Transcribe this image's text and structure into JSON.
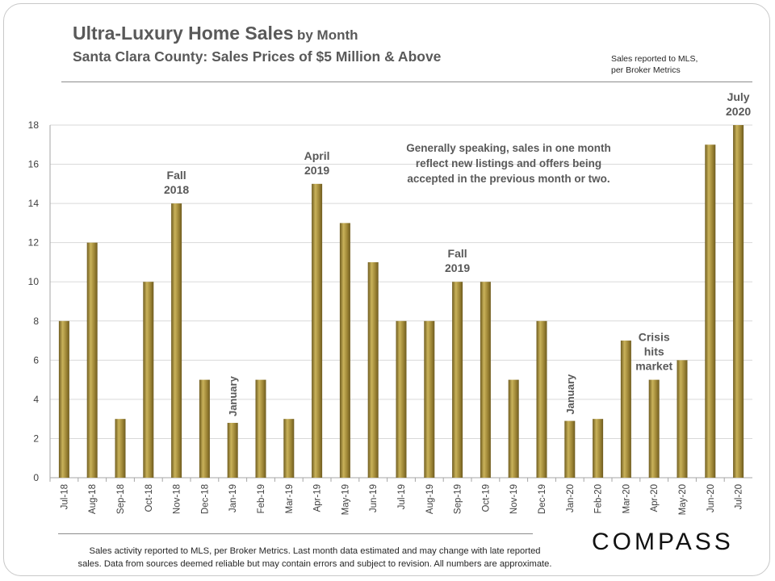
{
  "header": {
    "title_main": "Ultra-Luxury Home Sales",
    "title_suffix": "by Month",
    "subtitle": "Santa Clara County:  Sales Prices of $5 Million  & Above",
    "source_note_line1": "Sales reported to MLS,",
    "source_note_line2": "per Broker Metrics"
  },
  "footer": {
    "note_line1": "Sales activity reported to MLS, per Broker Metrics. Last month data estimated and may change with late reported",
    "note_line2": "sales.  Data from sources deemed reliable but may contain errors and subject to revision. All numbers are approximate.",
    "logo": "COMPASS"
  },
  "colors": {
    "bar": "#9e8636",
    "bar_highlight": "#c9b25a",
    "bar_shadow": "#6f5c1f",
    "gridline": "#d9d9d9",
    "text": "#595959"
  },
  "chart_data": {
    "type": "bar",
    "title": "",
    "xlabel": "",
    "ylabel": "",
    "ylim": [
      0,
      18
    ],
    "yticks": [
      0,
      2,
      4,
      6,
      8,
      10,
      12,
      14,
      16,
      18
    ],
    "grid": true,
    "categories": [
      "Jul-18",
      "Aug-18",
      "Sep-18",
      "Oct-18",
      "Nov-18",
      "Dec-18",
      "Jan-19",
      "Feb-19",
      "Mar-19",
      "Apr-19",
      "May-19",
      "Jun-19",
      "Jul-19",
      "Aug-19",
      "Sep-19",
      "Oct-19",
      "Nov-19",
      "Dec-19",
      "Jan-20",
      "Feb-20",
      "Mar-20",
      "Apr-20",
      "May-20",
      "Jun-20",
      "Jul-20"
    ],
    "values": [
      8,
      12,
      3,
      10,
      14,
      5,
      2.8,
      5,
      3,
      15,
      13,
      11,
      8,
      8,
      10,
      10,
      5,
      8,
      2.9,
      3,
      7,
      5,
      6,
      17,
      18
    ],
    "annotations": [
      {
        "category": "Nov-18",
        "lines": [
          "Fall",
          "2018"
        ]
      },
      {
        "category": "Jan-19",
        "lines": [
          "January"
        ],
        "rotated": true
      },
      {
        "category": "Apr-19",
        "lines": [
          "April",
          "2019"
        ]
      },
      {
        "category": "Sep-19",
        "lines": [
          "Fall",
          "2019"
        ]
      },
      {
        "category": "Jan-20",
        "lines": [
          "January"
        ],
        "rotated": true
      },
      {
        "category": "Apr-20",
        "lines": [
          "Crisis",
          "hits",
          "market"
        ]
      },
      {
        "category": "Jul-20",
        "lines": [
          "July",
          "2020"
        ]
      }
    ],
    "callout": [
      "Generally speaking, sales in one month",
      "reflect  new listings  and  offers being",
      "accepted in the previous month or two."
    ]
  }
}
